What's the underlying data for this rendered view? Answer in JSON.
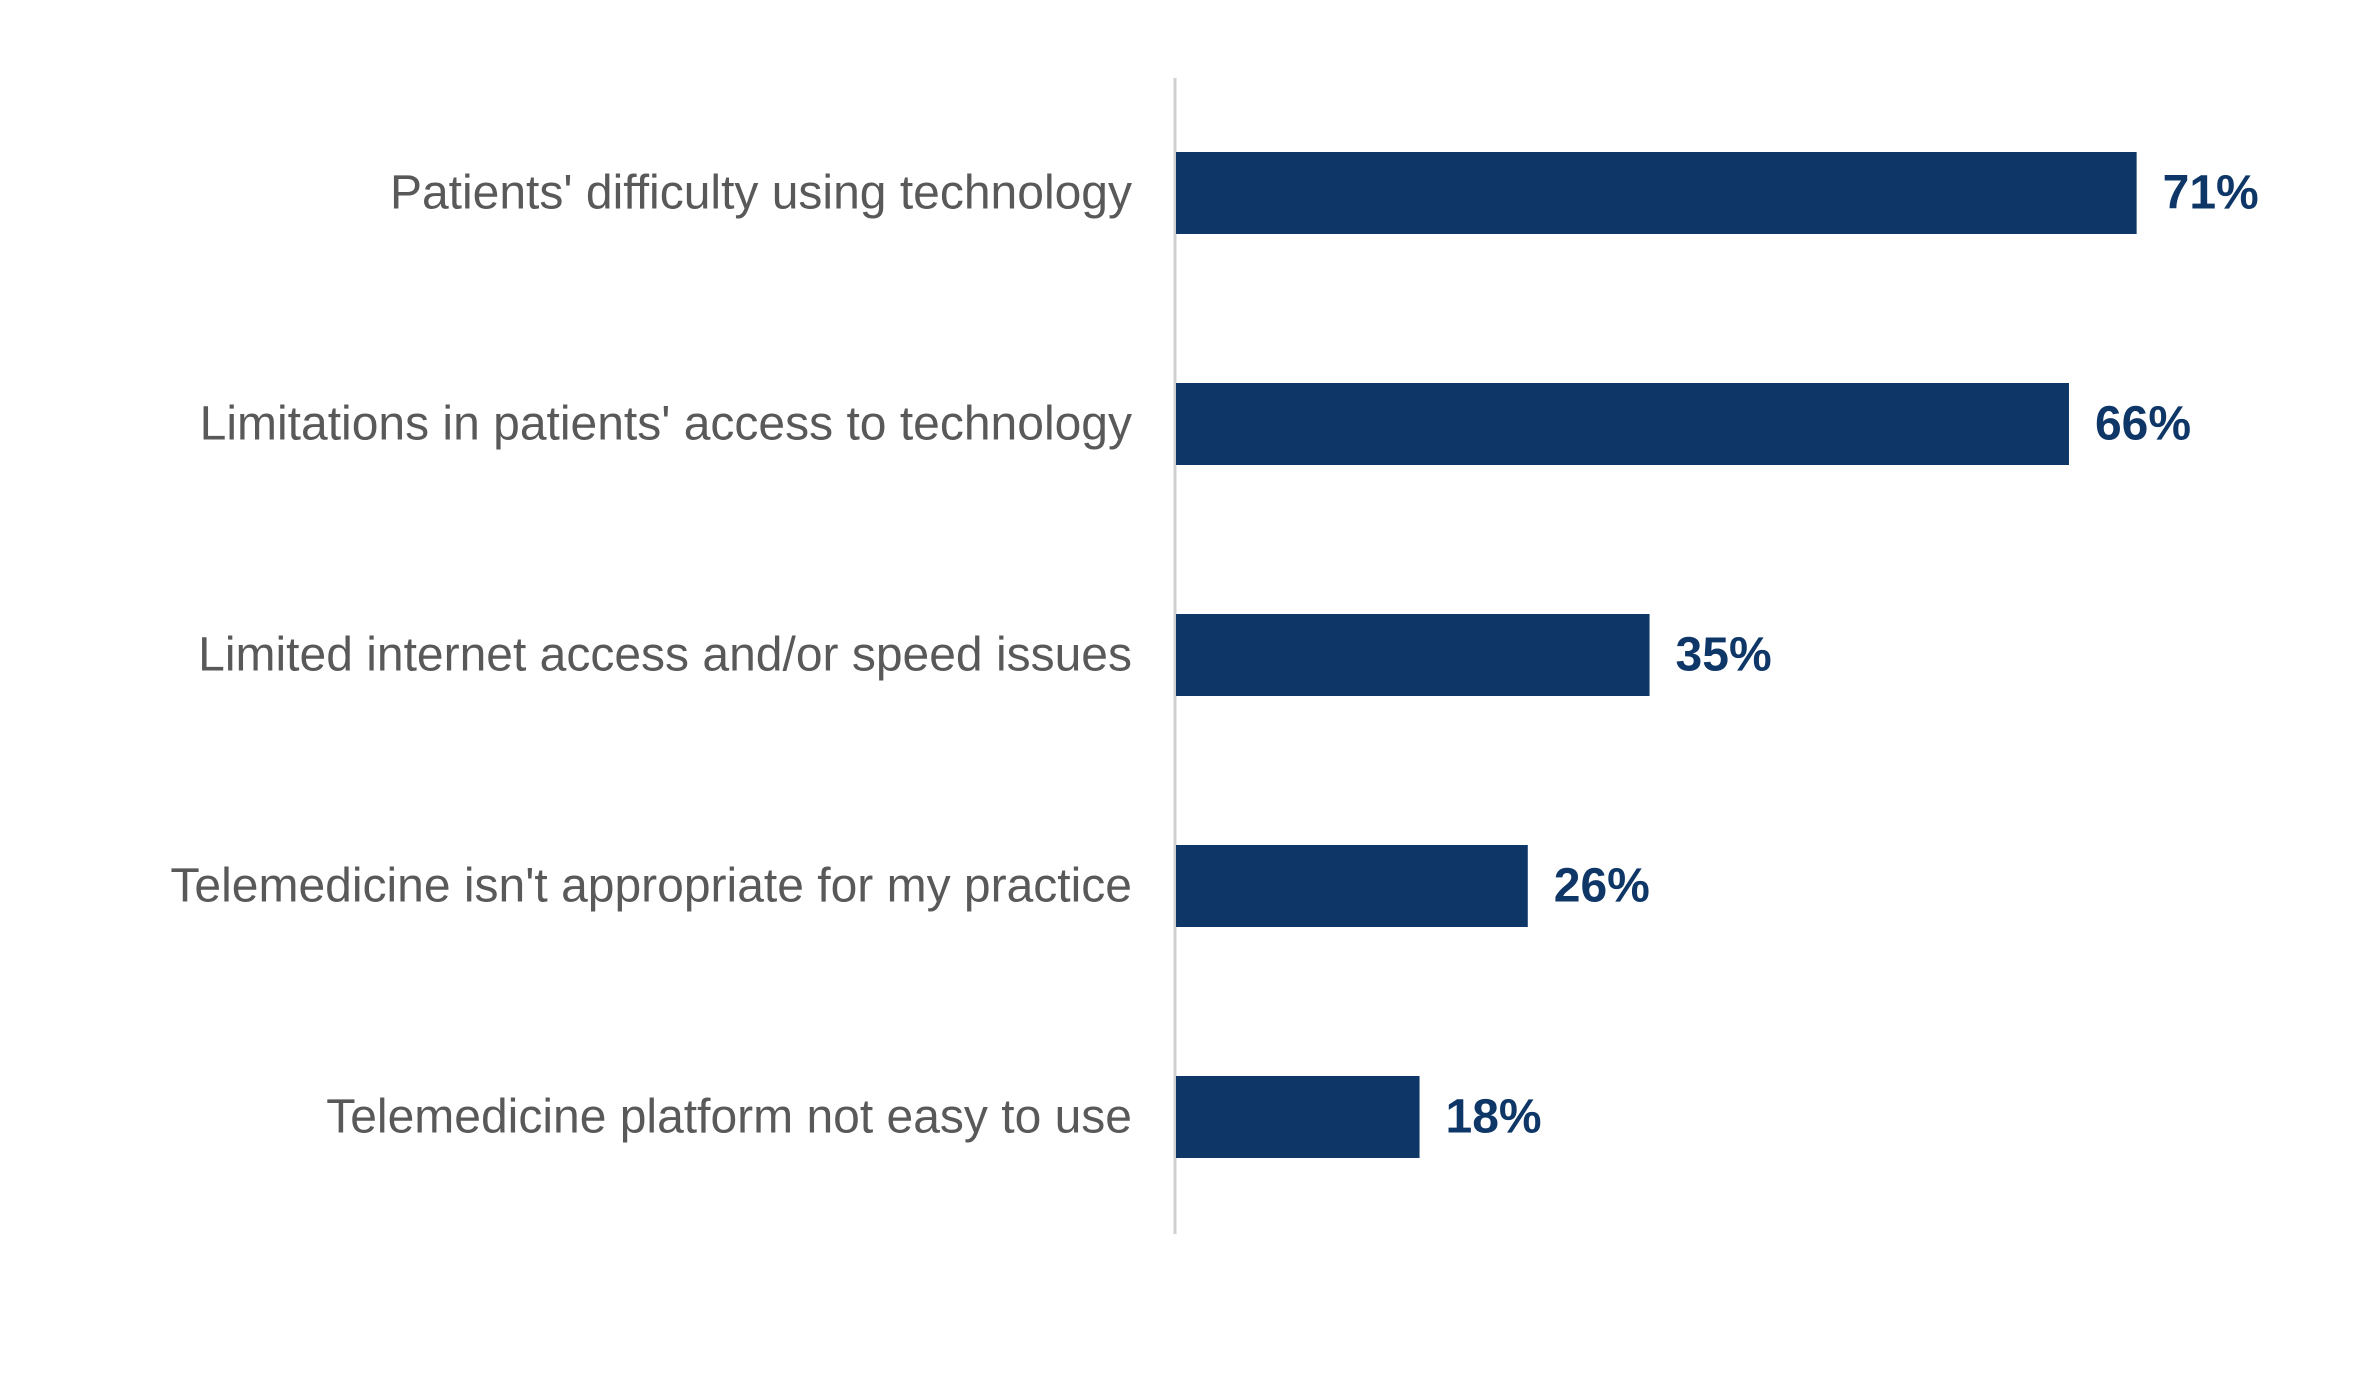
{
  "chart_data": {
    "type": "bar",
    "orientation": "horizontal",
    "categories": [
      "Patients' difficulty using technology",
      "Limitations in patients' access to technology",
      "Limited internet access and/or speed issues",
      "Telemedicine isn't appropriate for my practice",
      "Telemedicine platform not easy to use"
    ],
    "values": [
      71,
      66,
      35,
      26,
      18
    ],
    "value_labels": [
      "71%",
      "66%",
      "35%",
      "26%",
      "18%"
    ],
    "unit": "%",
    "xlim": [
      0,
      100
    ],
    "grid": false,
    "legend": "none",
    "title": "",
    "xlabel": "",
    "ylabel": ""
  },
  "colors": {
    "bar": "#0e3768",
    "value_label": "#0e3768",
    "category_label": "#595959",
    "axis": "#d0d0d0"
  }
}
